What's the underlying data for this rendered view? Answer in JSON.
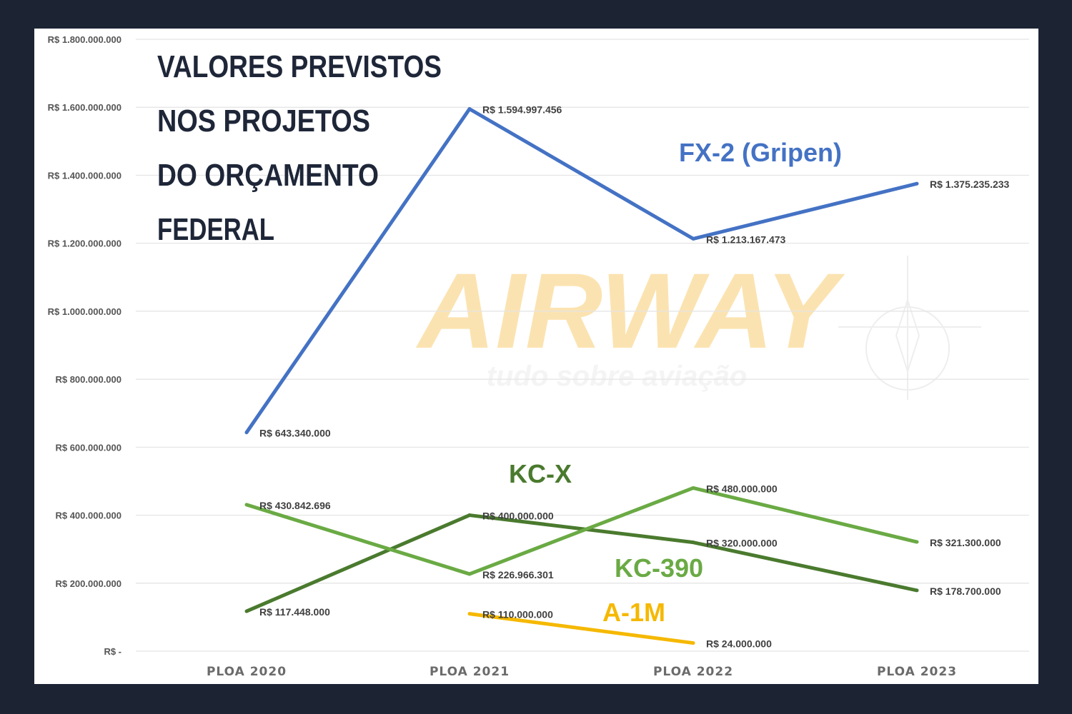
{
  "chart_data": {
    "type": "line",
    "title_lines": [
      "VALORES PREVISTOS",
      "NOS PROJETOS",
      "DO ORÇAMENTO",
      "FEDERAL"
    ],
    "categories": [
      "PLOA 2020",
      "PLOA 2021",
      "PLOA 2022",
      "PLOA 2023"
    ],
    "ylim": [
      0,
      1800000000
    ],
    "yticks": [
      {
        "value": 1800000000,
        "label": "R$ 1.800.000.000"
      },
      {
        "value": 1600000000,
        "label": "R$ 1.600.000.000"
      },
      {
        "value": 1400000000,
        "label": "R$ 1.400.000.000"
      },
      {
        "value": 1200000000,
        "label": "R$ 1.200.000.000"
      },
      {
        "value": 1000000000,
        "label": "R$ 1.000.000.000"
      },
      {
        "value": 800000000,
        "label": "R$ 800.000.000"
      },
      {
        "value": 600000000,
        "label": "R$ 600.000.000"
      },
      {
        "value": 400000000,
        "label": "R$ 400.000.000"
      },
      {
        "value": 200000000,
        "label": "R$ 200.000.000"
      },
      {
        "value": 0,
        "label": "R$ -"
      }
    ],
    "grid": true,
    "series": [
      {
        "name": "FX-2 (Gripen)",
        "color": "#4472c4",
        "values": [
          643340000,
          1594997456,
          1213167473,
          1375235233
        ],
        "labels": [
          "R$ 643.340.000",
          "R$ 1.594.997.456",
          "R$ 1.213.167.473",
          "R$ 1.375.235.233"
        ]
      },
      {
        "name": "KC-X",
        "color": "#4a7a2e",
        "values": [
          117448000,
          400000000,
          320000000,
          178700000
        ],
        "labels": [
          "R$ 117.448.000",
          "R$ 400.000.000",
          "R$ 320.000.000",
          "R$ 178.700.000"
        ]
      },
      {
        "name": "KC-390",
        "color": "#6aaa44",
        "values": [
          430842696,
          226966301,
          480000000,
          321300000
        ],
        "labels": [
          "R$ 430.842.696",
          "R$ 226.966.301",
          "R$ 480.000.000",
          "R$ 321.300.000"
        ]
      },
      {
        "name": "A-1M",
        "color": "#f5b800",
        "values": [
          null,
          110000000,
          24000000,
          null
        ],
        "labels": [
          null,
          "R$ 110.000.000",
          "R$ 24.000.000",
          null
        ]
      }
    ],
    "watermark": {
      "brand": "AIRWAY",
      "tagline": "tudo sobre aviação",
      "color": "#fbe3b1"
    }
  }
}
